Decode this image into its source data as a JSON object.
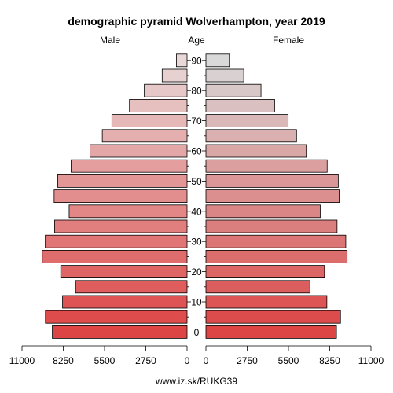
{
  "chart_data": {
    "type": "bar",
    "title": "demographic pyramid Wolverhampton, year 2019",
    "left_label": "Male",
    "center_label": "Age",
    "right_label": "Female",
    "footer": "www.iz.sk/RUKG39",
    "age_groups": [
      "0-4",
      "5-9",
      "10-14",
      "15-19",
      "20-24",
      "25-29",
      "30-34",
      "35-39",
      "40-44",
      "45-49",
      "50-54",
      "55-59",
      "60-64",
      "65-69",
      "70-74",
      "75-79",
      "80-84",
      "85-89",
      "90+"
    ],
    "age_tick_labels": [
      "0",
      "10",
      "20",
      "30",
      "40",
      "50",
      "60",
      "70",
      "80",
      "90"
    ],
    "x_tick_labels": [
      "11000",
      "8250",
      "5500",
      "2750",
      "0",
      "2750",
      "5500",
      "8250",
      "11000"
    ],
    "xlim": [
      0,
      11000
    ],
    "series": [
      {
        "name": "Male",
        "color_strong": "#dd4444",
        "color_light": "#e8d8d8",
        "values": [
          8980,
          9440,
          8300,
          7430,
          8420,
          9650,
          9450,
          8830,
          7860,
          8860,
          8620,
          7730,
          6470,
          5650,
          5010,
          3840,
          2850,
          1660,
          710
        ]
      },
      {
        "name": "Female",
        "color_strong": "#dd4444",
        "color_light": "#d9d9d9",
        "values": [
          8700,
          8970,
          8060,
          6930,
          7900,
          9410,
          9320,
          8740,
          7620,
          8880,
          8820,
          8080,
          6690,
          6040,
          5480,
          4580,
          3670,
          2520,
          1560
        ]
      }
    ],
    "grid": false,
    "legend": "none"
  }
}
